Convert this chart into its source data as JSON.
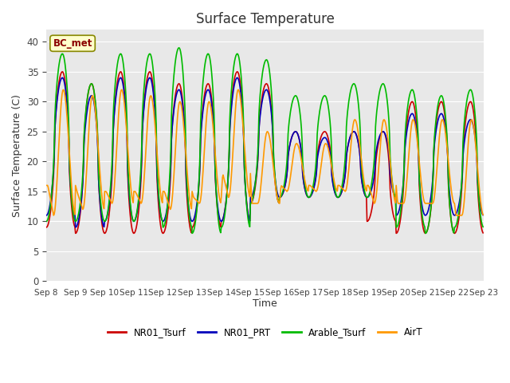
{
  "title": "Surface Temperature",
  "ylabel": "Surface Temperature (C)",
  "xlabel": "Time",
  "annotation": "BC_met",
  "ylim": [
    0,
    42
  ],
  "yticks": [
    0,
    5,
    10,
    15,
    20,
    25,
    30,
    35,
    40
  ],
  "background_color": "#e8e8e8",
  "fig_background": "#ffffff",
  "series_colors": {
    "NR01_Tsurf": "#cc0000",
    "NR01_PRT": "#0000bb",
    "Arable_Tsurf": "#00bb00",
    "AirT": "#ff9900"
  },
  "legend_labels": [
    "NR01_Tsurf",
    "NR01_PRT",
    "Arable_Tsurf",
    "AirT"
  ],
  "x_tick_labels": [
    "Sep 8",
    "Sep 9",
    "Sep 10",
    "Sep 11",
    "Sep 12",
    "Sep 13",
    "Sep 14",
    "Sep 15",
    "Sep 16",
    "Sep 17",
    "Sep 18",
    "Sep 19",
    "Sep 20",
    "Sep 21",
    "Sep 22",
    "Sep 23"
  ],
  "num_days": 15,
  "daily_peaks": {
    "NR01_Tsurf": [
      35,
      33,
      35,
      35,
      33,
      33,
      35,
      33,
      25,
      25,
      25,
      25,
      30,
      30,
      30
    ],
    "NR01_PRT": [
      34,
      31,
      34,
      34,
      32,
      32,
      34,
      32,
      25,
      24,
      25,
      25,
      28,
      28,
      27
    ],
    "Arable_Tsurf": [
      38,
      33,
      38,
      38,
      39,
      38,
      38,
      37,
      31,
      31,
      33,
      33,
      32,
      31,
      32
    ],
    "AirT": [
      32,
      31,
      32,
      31,
      30,
      30,
      32,
      25,
      23,
      23,
      27,
      27,
      27,
      27,
      27
    ]
  },
  "daily_mins": {
    "NR01_Tsurf": [
      9,
      8,
      8,
      8,
      8,
      9,
      10,
      13,
      14,
      14,
      14,
      10,
      8,
      8,
      8
    ],
    "NR01_PRT": [
      11,
      9,
      10,
      10,
      10,
      10,
      10,
      14,
      14,
      14,
      14,
      14,
      11,
      11,
      11
    ],
    "Arable_Tsurf": [
      10,
      10,
      10,
      10,
      9,
      8,
      9,
      13,
      14,
      14,
      14,
      14,
      9,
      8,
      9
    ],
    "AirT": [
      11,
      12,
      13,
      13,
      12,
      13,
      14,
      13,
      15,
      15,
      15,
      13,
      13,
      13,
      11
    ]
  },
  "airt_morning_vals": [
    16,
    15,
    15,
    15,
    15,
    14,
    18,
    13,
    16,
    16,
    16,
    16,
    13,
    13,
    11
  ],
  "peak_hours": {
    "NR01_Tsurf": 13,
    "NR01_PRT": 13,
    "Arable_Tsurf": 12,
    "AirT": 14
  },
  "lw": 1.2
}
